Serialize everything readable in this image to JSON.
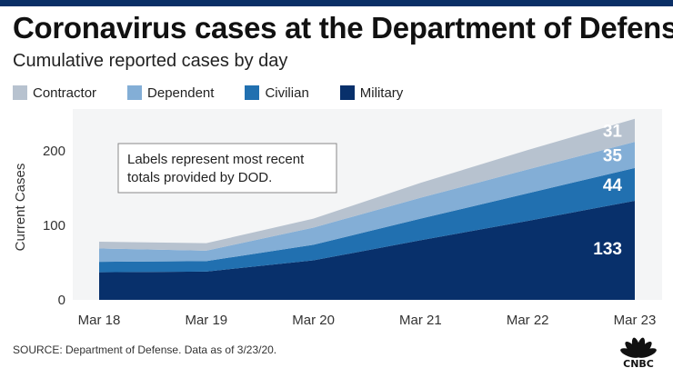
{
  "header": {
    "title": "Coronavirus cases at the Department of Defense",
    "subtitle": "Cumulative reported cases by day"
  },
  "source_text": "SOURCE: Department of Defense. Data as of 3/23/20.",
  "logo_text": "CNBC",
  "colors": {
    "contractor": "#b7c2cf",
    "dependent": "#83aed6",
    "civilian": "#2170b0",
    "military": "#08306b",
    "topbar": "#0a2f66"
  },
  "chart_data": {
    "type": "area",
    "stacked": true,
    "title": "Coronavirus cases at the Department of Defense",
    "subtitle": "Cumulative reported cases by day",
    "ylabel": "Current Cases",
    "xlabel": "",
    "categories": [
      "Mar 18",
      "Mar 19",
      "Mar 20",
      "Mar 21",
      "Mar 22",
      "Mar 23"
    ],
    "ylim": [
      0,
      250
    ],
    "yticks": [
      0,
      100,
      200
    ],
    "grid": false,
    "legend_position": "top",
    "series": [
      {
        "name": "Military",
        "values": [
          37,
          38,
          53,
          80,
          106,
          133
        ]
      },
      {
        "name": "Civilian",
        "values": [
          14,
          14,
          21,
          29,
          37,
          44
        ]
      },
      {
        "name": "Dependent",
        "values": [
          18,
          14,
          23,
          28,
          32,
          35
        ]
      },
      {
        "name": "Contractor",
        "values": [
          9,
          10,
          12,
          20,
          26,
          31
        ]
      }
    ],
    "legend_order": [
      "Contractor",
      "Dependent",
      "Civilian",
      "Military"
    ],
    "data_labels": [
      "31",
      "35",
      "44",
      "133"
    ],
    "annotation": "Labels represent most recent totals provided by DOD."
  }
}
